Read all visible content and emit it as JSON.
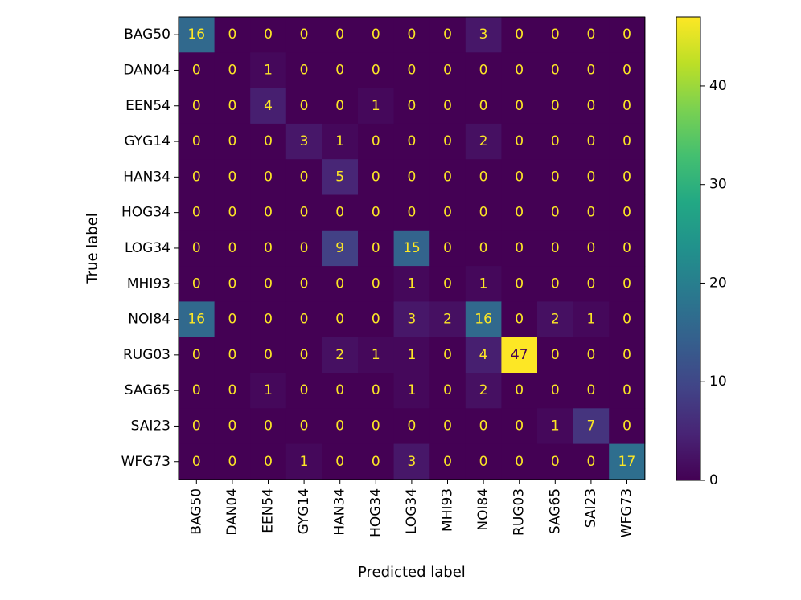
{
  "chart_data": {
    "type": "heatmap",
    "title": "",
    "xlabel": "Predicted label",
    "ylabel": "True label",
    "x_categories": [
      "BAG50",
      "DAN04",
      "EEN54",
      "GYG14",
      "HAN34",
      "HOG34",
      "LOG34",
      "MHI93",
      "NOI84",
      "RUG03",
      "SAG65",
      "SAI23",
      "WFG73"
    ],
    "y_categories": [
      "BAG50",
      "DAN04",
      "EEN54",
      "GYG14",
      "HAN34",
      "HOG34",
      "LOG34",
      "MHI93",
      "NOI84",
      "RUG03",
      "SAG65",
      "SAI23",
      "WFG73"
    ],
    "matrix": [
      [
        16,
        0,
        0,
        0,
        0,
        0,
        0,
        0,
        3,
        0,
        0,
        0,
        0
      ],
      [
        0,
        0,
        1,
        0,
        0,
        0,
        0,
        0,
        0,
        0,
        0,
        0,
        0
      ],
      [
        0,
        0,
        4,
        0,
        0,
        1,
        0,
        0,
        0,
        0,
        0,
        0,
        0
      ],
      [
        0,
        0,
        0,
        3,
        1,
        0,
        0,
        0,
        2,
        0,
        0,
        0,
        0
      ],
      [
        0,
        0,
        0,
        0,
        5,
        0,
        0,
        0,
        0,
        0,
        0,
        0,
        0
      ],
      [
        0,
        0,
        0,
        0,
        0,
        0,
        0,
        0,
        0,
        0,
        0,
        0,
        0
      ],
      [
        0,
        0,
        0,
        0,
        9,
        0,
        15,
        0,
        0,
        0,
        0,
        0,
        0
      ],
      [
        0,
        0,
        0,
        0,
        0,
        0,
        1,
        0,
        1,
        0,
        0,
        0,
        0
      ],
      [
        16,
        0,
        0,
        0,
        0,
        0,
        3,
        2,
        16,
        0,
        2,
        1,
        0
      ],
      [
        0,
        0,
        0,
        0,
        2,
        1,
        1,
        0,
        4,
        47,
        0,
        0,
        0
      ],
      [
        0,
        0,
        1,
        0,
        0,
        0,
        1,
        0,
        2,
        0,
        0,
        0,
        0
      ],
      [
        0,
        0,
        0,
        0,
        0,
        0,
        0,
        0,
        0,
        0,
        1,
        7,
        0
      ],
      [
        0,
        0,
        0,
        1,
        0,
        0,
        3,
        0,
        0,
        0,
        0,
        0,
        17
      ]
    ],
    "colormap": "viridis",
    "colorbar": {
      "range": [
        0,
        47
      ],
      "ticks": [
        0,
        10,
        20,
        30,
        40
      ]
    },
    "text_colors": {
      "dark_cells": "#fde725",
      "bright_cells": "#440154"
    }
  }
}
